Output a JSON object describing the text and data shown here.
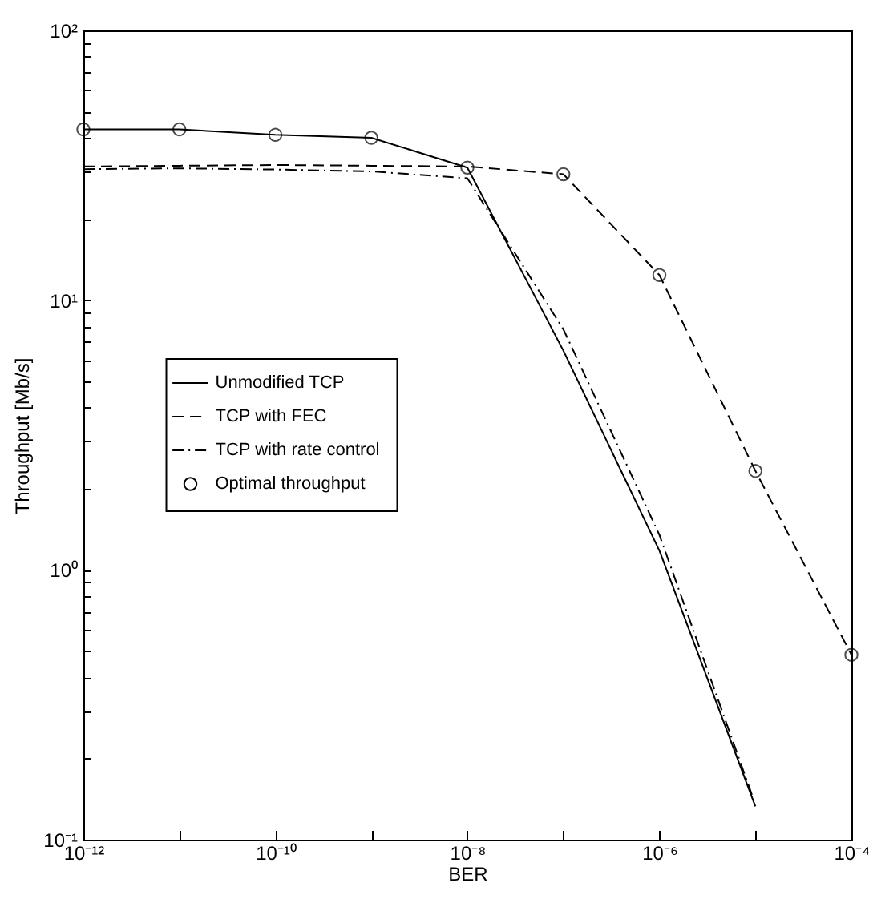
{
  "chart_data": {
    "type": "line",
    "xlabel": "BER",
    "ylabel": "Throughput [Mb/s]",
    "log": "xy",
    "grid": false,
    "legend": "left",
    "x": [
      1e-12,
      1e-11,
      1e-10,
      1e-09,
      1e-08,
      1e-07,
      1e-06,
      1e-05
    ],
    "xlim": [
      1e-12,
      0.0001
    ],
    "xticks": [
      {
        "value": 1e-12,
        "label": "10⁻¹²"
      },
      {
        "value": 1e-11,
        "label": null
      },
      {
        "value": 1e-10,
        "label": "10⁻¹⁰"
      },
      {
        "value": 1e-09,
        "label": null
      },
      {
        "value": 1e-08,
        "label": "10⁻⁸"
      },
      {
        "value": 1e-07,
        "label": null
      },
      {
        "value": 1e-06,
        "label": "10⁻⁶"
      },
      {
        "value": 1e-05,
        "label": null
      },
      {
        "value": 0.0001,
        "label": "10⁻⁴"
      }
    ],
    "ylim": [
      0.1,
      100
    ],
    "yticks": [
      {
        "value": 0.1,
        "label": "10⁻¹"
      },
      {
        "value": 0.2,
        "label": null
      },
      {
        "value": 0.3,
        "label": null
      },
      {
        "value": 0.4,
        "label": null
      },
      {
        "value": 0.5,
        "label": null
      },
      {
        "value": 0.6,
        "label": null
      },
      {
        "value": 0.7,
        "label": null
      },
      {
        "value": 0.8,
        "label": null
      },
      {
        "value": 0.9,
        "label": null
      },
      {
        "value": 1,
        "label": "10⁰"
      },
      {
        "value": 2,
        "label": null
      },
      {
        "value": 3,
        "label": null
      },
      {
        "value": 4,
        "label": null
      },
      {
        "value": 5,
        "label": null
      },
      {
        "value": 6,
        "label": null
      },
      {
        "value": 7,
        "label": null
      },
      {
        "value": 8,
        "label": null
      },
      {
        "value": 9,
        "label": null
      },
      {
        "value": 10,
        "label": "10¹"
      },
      {
        "value": 20,
        "label": null
      },
      {
        "value": 30,
        "label": null
      },
      {
        "value": 40,
        "label": null
      },
      {
        "value": 50,
        "label": null
      },
      {
        "value": 60,
        "label": null
      },
      {
        "value": 70,
        "label": null
      },
      {
        "value": 80,
        "label": null
      },
      {
        "value": 90,
        "label": null
      },
      {
        "value": 100,
        "label": "10²"
      }
    ],
    "series": [
      {
        "name": "Unmodified TCP",
        "line_style": "solid",
        "color": "#000000",
        "values": [
          43,
          43,
          41,
          40,
          31,
          6.5,
          1.18,
          0.133
        ]
      },
      {
        "name": "TCP with FEC",
        "line_style": "dashed",
        "color": "#000000",
        "x": [
          1e-12,
          1e-11,
          1e-10,
          1e-09,
          1e-08,
          1e-07,
          1e-06,
          1e-05,
          0.0001
        ],
        "values": [
          31.3,
          31.5,
          31.7,
          31.5,
          31.3,
          29.3,
          12.4,
          2.33,
          0.485
        ]
      },
      {
        "name": "TCP with rate control",
        "line_style": "dashdot",
        "color": "#000000",
        "values": [
          30.6,
          30.8,
          30.5,
          30,
          28.3,
          7.8,
          1.35,
          0.135
        ]
      },
      {
        "name": "Optimal throughput",
        "type": "scatter",
        "marker": "circle",
        "color": "#000000",
        "x": [
          1e-12,
          1e-11,
          1e-10,
          1e-09,
          1e-08,
          1e-07,
          1e-06,
          1e-05,
          0.0001
        ],
        "values": [
          43,
          43,
          41,
          40,
          31,
          29.3,
          12.4,
          2.33,
          0.485
        ]
      }
    ]
  }
}
